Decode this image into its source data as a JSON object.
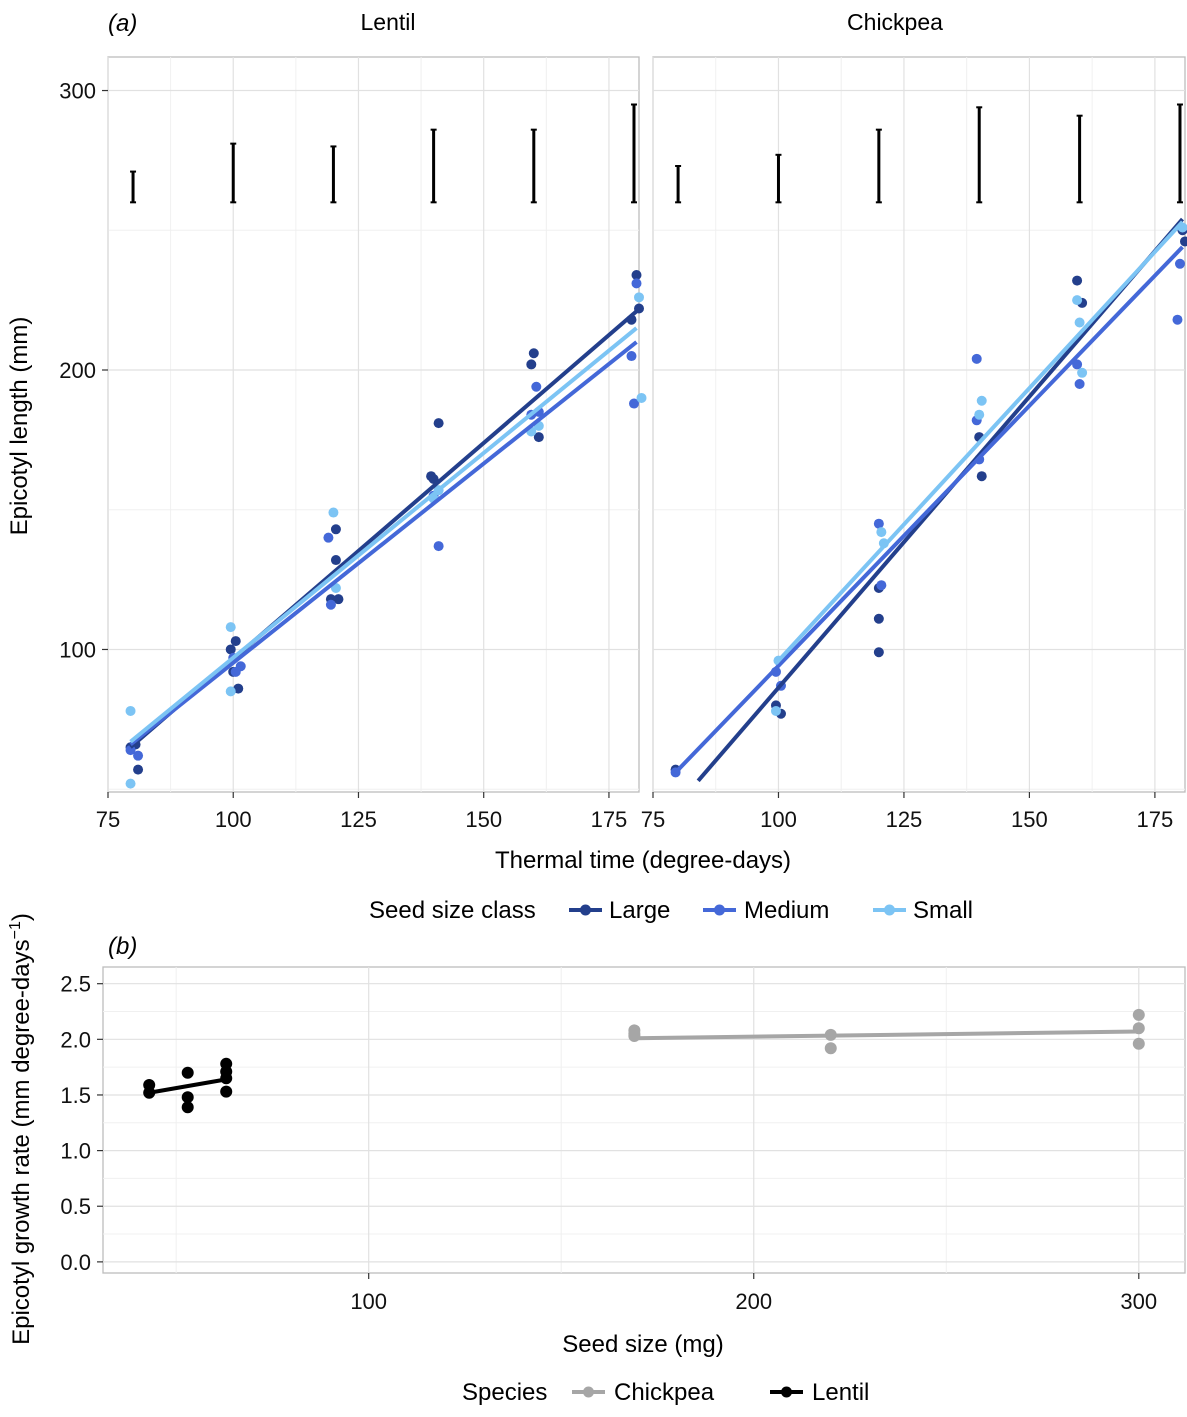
{
  "panel_a": {
    "label": "(a)",
    "ylabel": "Epicotyl length (mm)",
    "xlabel": "Thermal time (degree-days)",
    "legend": {
      "title": "Seed size class",
      "items": [
        {
          "name": "Large",
          "color": "#233f8c"
        },
        {
          "name": "Medium",
          "color": "#4468d8"
        },
        {
          "name": "Small",
          "color": "#7cc4f4"
        }
      ]
    }
  },
  "panel_b": {
    "label": "(b)",
    "ylabel": "Epicotyl growth rate (mm degree-days",
    "ylabel_sup": "−1",
    "ylabel_close": ")",
    "xlabel": "Seed size (mg)",
    "legend": {
      "title": "Species",
      "items": [
        {
          "name": "Chickpea",
          "color": "#a6a6a6"
        },
        {
          "name": "Lentil",
          "color": "#000000"
        }
      ]
    }
  },
  "chart_data": [
    {
      "type": "scatter",
      "facet": "Lentil",
      "xlabel": "Thermal time (degree-days)",
      "ylabel": "Epicotyl length (mm)",
      "xlim": [
        75,
        181
      ],
      "ylim": [
        49,
        312
      ],
      "xticks": [
        75,
        100,
        125,
        150,
        175
      ],
      "yticks": [
        100,
        200,
        300
      ],
      "error_bars": [
        {
          "x": 80,
          "low": 260,
          "high": 271
        },
        {
          "x": 100,
          "low": 260,
          "high": 281
        },
        {
          "x": 120,
          "low": 260,
          "high": 280
        },
        {
          "x": 140,
          "low": 260,
          "high": 286
        },
        {
          "x": 160,
          "low": 260,
          "high": 286
        },
        {
          "x": 180,
          "low": 260,
          "high": 295
        }
      ],
      "series": [
        {
          "name": "Large",
          "color": "#233f8c",
          "points": [
            [
              79.5,
              65
            ],
            [
              80.5,
              66
            ],
            [
              81,
              57
            ],
            [
              99.5,
              100
            ],
            [
              100.5,
              103
            ],
            [
              100,
              92
            ],
            [
              101,
              86
            ],
            [
              119.5,
              118
            ],
            [
              120.5,
              132
            ],
            [
              120.5,
              143
            ],
            [
              121,
              118
            ],
            [
              139.5,
              162
            ],
            [
              140,
              161
            ],
            [
              141,
              181
            ],
            [
              159.5,
              202
            ],
            [
              160,
              206
            ],
            [
              161,
              176
            ],
            [
              179.5,
              218
            ],
            [
              180.5,
              234
            ],
            [
              181,
              222
            ]
          ],
          "fit": [
            [
              79.5,
              65
            ],
            [
              180.5,
              221
            ]
          ]
        },
        {
          "name": "Medium",
          "color": "#4468d8",
          "points": [
            [
              79.5,
              64
            ],
            [
              81,
              62
            ],
            [
              100,
              97
            ],
            [
              100.5,
              92
            ],
            [
              101.5,
              94
            ],
            [
              119,
              140
            ],
            [
              119.5,
              116
            ],
            [
              140,
              155
            ],
            [
              141,
              137
            ],
            [
              159.5,
              184
            ],
            [
              160.5,
              194
            ],
            [
              161,
              185
            ],
            [
              179.5,
              205
            ],
            [
              180,
              188
            ],
            [
              180.5,
              231
            ]
          ],
          "fit": [
            [
              79.5,
              66
            ],
            [
              180.5,
              210
            ]
          ]
        },
        {
          "name": "Small",
          "color": "#7cc4f4",
          "points": [
            [
              79.5,
              78
            ],
            [
              79.5,
              52
            ],
            [
              99.5,
              108
            ],
            [
              99.5,
              85
            ],
            [
              120,
              149
            ],
            [
              120.5,
              122
            ],
            [
              140,
              154
            ],
            [
              141,
              157
            ],
            [
              159.5,
              178
            ],
            [
              161,
              180
            ],
            [
              181,
              226
            ],
            [
              181.5,
              190
            ]
          ],
          "fit": [
            [
              79.5,
              67
            ],
            [
              180.5,
              215
            ]
          ]
        }
      ]
    },
    {
      "type": "scatter",
      "facet": "Chickpea",
      "xlabel": "Thermal time (degree-days)",
      "ylabel": "Epicotyl length (mm)",
      "xlim": [
        75,
        181
      ],
      "ylim": [
        49,
        312
      ],
      "xticks": [
        75,
        100,
        125,
        150,
        175
      ],
      "yticks": [
        100,
        200,
        300
      ],
      "error_bars": [
        {
          "x": 80,
          "low": 260,
          "high": 273
        },
        {
          "x": 100,
          "low": 260,
          "high": 277
        },
        {
          "x": 120,
          "low": 260,
          "high": 286
        },
        {
          "x": 140,
          "low": 260,
          "high": 294
        },
        {
          "x": 160,
          "low": 260,
          "high": 291
        },
        {
          "x": 180,
          "low": 260,
          "high": 295
        }
      ],
      "series": [
        {
          "name": "Large",
          "color": "#233f8c",
          "points": [
            [
              79.5,
              57
            ],
            [
              99.5,
              80
            ],
            [
              100.5,
              77
            ],
            [
              120,
              122
            ],
            [
              120,
              111
            ],
            [
              120,
              99
            ],
            [
              140,
              176
            ],
            [
              140.5,
              162
            ],
            [
              159.5,
              232
            ],
            [
              160.5,
              224
            ],
            [
              181,
              246
            ],
            [
              180.5,
              250
            ]
          ],
          "fit": [
            [
              84,
              53
            ],
            [
              180.5,
              254
            ]
          ]
        },
        {
          "name": "Medium",
          "color": "#4468d8",
          "points": [
            [
              79.5,
              56
            ],
            [
              99.5,
              92
            ],
            [
              100.5,
              87
            ],
            [
              120,
              145
            ],
            [
              120.5,
              123
            ],
            [
              139.5,
              182
            ],
            [
              139.5,
              204
            ],
            [
              140,
              168
            ],
            [
              159.5,
              202
            ],
            [
              160,
              195
            ],
            [
              180,
              238
            ],
            [
              179.5,
              218
            ]
          ],
          "fit": [
            [
              79.5,
              56
            ],
            [
              180.5,
              244
            ]
          ]
        },
        {
          "name": "Small",
          "color": "#7cc4f4",
          "points": [
            [
              100,
              96
            ],
            [
              99.5,
              78
            ],
            [
              120.5,
              142
            ],
            [
              121,
              138
            ],
            [
              140,
              184
            ],
            [
              140.5,
              189
            ],
            [
              159.5,
              225
            ],
            [
              160,
              217
            ],
            [
              160.5,
              199
            ],
            [
              180.5,
              251
            ]
          ],
          "fit": [
            [
              99.5,
              95
            ],
            [
              180.5,
              253
            ]
          ]
        }
      ]
    },
    {
      "type": "scatter",
      "xlabel": "Seed size (mg)",
      "ylabel": "Epicotyl growth rate (mm degree-days−1)",
      "xlim": [
        31,
        312
      ],
      "ylim": [
        -0.1,
        2.65
      ],
      "xticks": [
        100,
        200,
        300
      ],
      "yticks": [
        0.0,
        0.5,
        1.0,
        1.5,
        2.0,
        2.5
      ],
      "ytick_labels": [
        "0.0",
        "0.5",
        "1.0",
        "1.5",
        "2.0",
        "2.5"
      ],
      "series": [
        {
          "name": "Chickpea",
          "color": "#a6a6a6",
          "points": [
            [
              169,
              2.08
            ],
            [
              169,
              2.05
            ],
            [
              169,
              2.03
            ],
            [
              220,
              2.04
            ],
            [
              220,
              1.92
            ],
            [
              300,
              2.22
            ],
            [
              300,
              2.1
            ],
            [
              300,
              1.96
            ]
          ],
          "fit": [
            [
              169,
              2.01
            ],
            [
              300,
              2.07
            ]
          ]
        },
        {
          "name": "Lentil",
          "color": "#000000",
          "points": [
            [
              43,
              1.59
            ],
            [
              43,
              1.52
            ],
            [
              53,
              1.7
            ],
            [
              53,
              1.48
            ],
            [
              53,
              1.39
            ],
            [
              63,
              1.78
            ],
            [
              63,
              1.71
            ],
            [
              63,
              1.65
            ],
            [
              63,
              1.53
            ]
          ],
          "fit": [
            [
              43,
              1.52
            ],
            [
              63,
              1.64
            ]
          ]
        }
      ]
    }
  ]
}
